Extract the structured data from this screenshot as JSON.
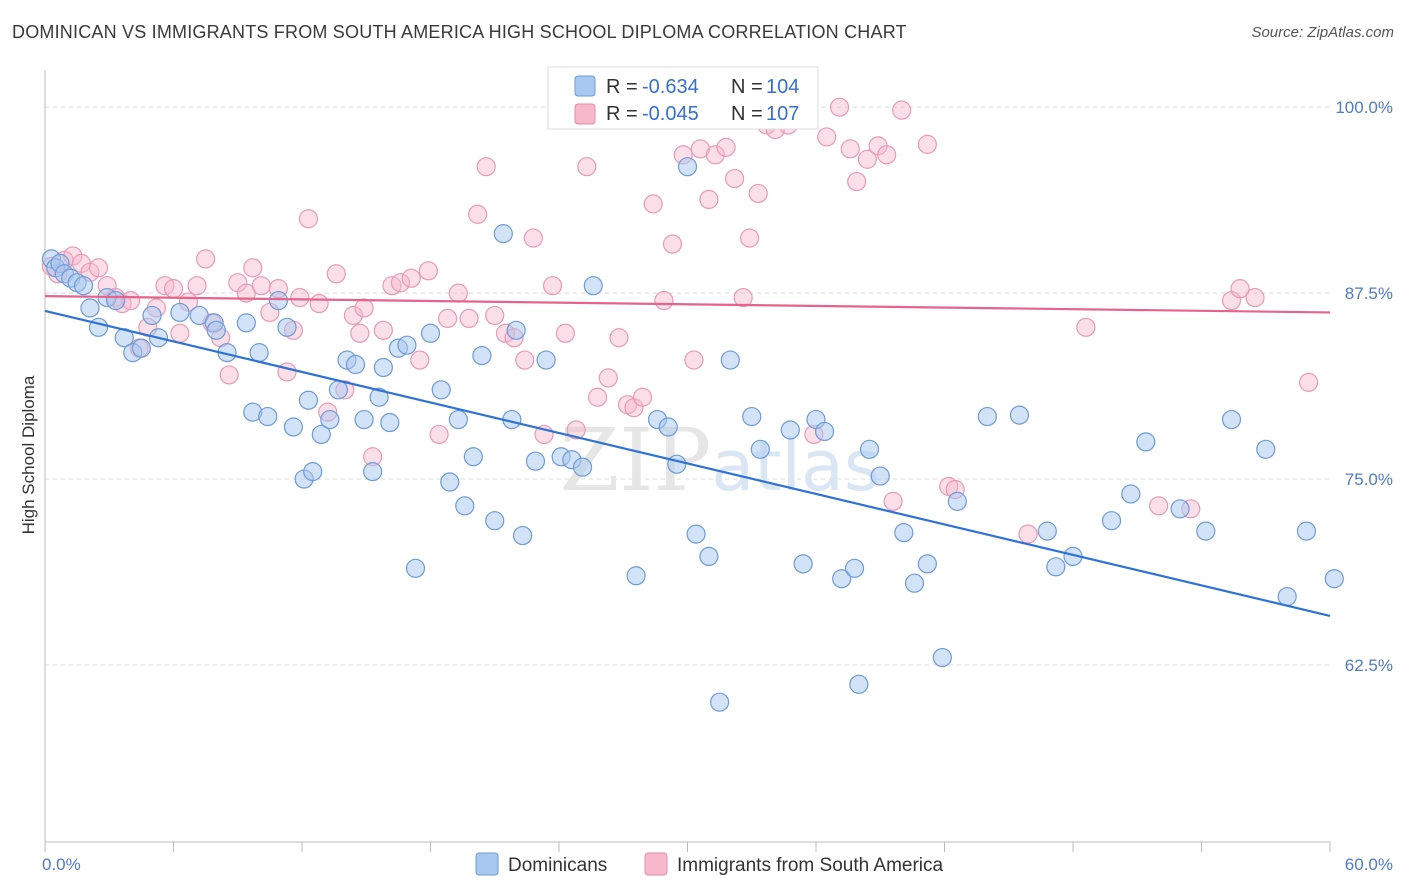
{
  "title": "DOMINICAN VS IMMIGRANTS FROM SOUTH AMERICA HIGH SCHOOL DIPLOMA CORRELATION CHART",
  "source": "Source: ZipAtlas.com",
  "watermark": "ZIPatlas",
  "colors": {
    "blue_fill": "#a8c8f0",
    "blue_line": "#2f72d6",
    "pink_fill": "#f7b8cb",
    "pink_line": "#e5638c",
    "tick_text": "#4f7cc7",
    "grid": "#d8d8d8"
  },
  "legend_top": {
    "r_label": "R =",
    "n_label": "N =",
    "rows": [
      {
        "r": "-0.634",
        "n": "104"
      },
      {
        "r": "-0.045",
        "n": "107"
      }
    ]
  },
  "chart_data": {
    "type": "scatter",
    "title": "DOMINICAN VS IMMIGRANTS FROM SOUTH AMERICA HIGH SCHOOL DIPLOMA CORRELATION CHART",
    "xlabel": "",
    "ylabel": "High School Diploma",
    "xlim": [
      0,
      60
    ],
    "ylim": [
      50.6,
      102.5
    ],
    "x_tick_labels": [
      "0.0%",
      "60.0%"
    ],
    "y_ticks": [
      62.5,
      75.0,
      87.5,
      100.0
    ],
    "y_tick_labels": [
      "62.5%",
      "75.0%",
      "87.5%",
      "100.0%"
    ],
    "grid": true,
    "legend_placement": "top-center and bottom",
    "series": [
      {
        "name": "Dominicans",
        "r": -0.634,
        "n": 104,
        "trend": {
          "x": [
            0,
            60
          ],
          "y": [
            86.3,
            65.8
          ]
        },
        "points": [
          [
            0.3,
            89.8
          ],
          [
            0.5,
            89.2
          ],
          [
            0.7,
            89.5
          ],
          [
            0.9,
            88.8
          ],
          [
            1.2,
            88.5
          ],
          [
            1.5,
            88.2
          ],
          [
            1.8,
            88.0
          ],
          [
            2.1,
            86.5
          ],
          [
            2.5,
            85.2
          ],
          [
            2.9,
            87.2
          ],
          [
            3.3,
            87.0
          ],
          [
            3.7,
            84.5
          ],
          [
            4.1,
            83.5
          ],
          [
            4.5,
            83.8
          ],
          [
            5.0,
            86.0
          ],
          [
            5.3,
            84.5
          ],
          [
            6.3,
            86.2
          ],
          [
            7.2,
            86.0
          ],
          [
            7.9,
            85.5
          ],
          [
            8.5,
            83.5
          ],
          [
            9.4,
            85.5
          ],
          [
            9.7,
            79.5
          ],
          [
            10.0,
            83.5
          ],
          [
            10.4,
            79.2
          ],
          [
            10.9,
            87.0
          ],
          [
            11.3,
            85.2
          ],
          [
            11.6,
            78.5
          ],
          [
            12.1,
            75.0
          ],
          [
            12.5,
            75.5
          ],
          [
            12.9,
            78.0
          ],
          [
            13.3,
            79.0
          ],
          [
            13.7,
            81.0
          ],
          [
            14.1,
            83.0
          ],
          [
            14.5,
            82.7
          ],
          [
            14.9,
            79.0
          ],
          [
            15.3,
            75.5
          ],
          [
            15.6,
            80.5
          ],
          [
            16.1,
            78.8
          ],
          [
            16.5,
            83.8
          ],
          [
            16.9,
            84.0
          ],
          [
            17.3,
            69.0
          ],
          [
            18.0,
            84.8
          ],
          [
            18.5,
            81.0
          ],
          [
            18.9,
            74.8
          ],
          [
            19.3,
            79.0
          ],
          [
            19.6,
            73.2
          ],
          [
            20.0,
            76.5
          ],
          [
            20.4,
            83.3
          ],
          [
            21.0,
            72.2
          ],
          [
            21.4,
            91.5
          ],
          [
            21.8,
            79.0
          ],
          [
            22.3,
            71.2
          ],
          [
            22.9,
            76.2
          ],
          [
            23.4,
            83.0
          ],
          [
            24.1,
            76.5
          ],
          [
            24.6,
            76.3
          ],
          [
            25.1,
            75.8
          ],
          [
            25.6,
            88.0
          ],
          [
            25.9,
            100.0
          ],
          [
            27.2,
            100.0
          ],
          [
            27.6,
            68.5
          ],
          [
            28.6,
            79.0
          ],
          [
            29.1,
            78.5
          ],
          [
            29.5,
            76.0
          ],
          [
            30.0,
            96.0
          ],
          [
            30.4,
            71.3
          ],
          [
            31.0,
            69.8
          ],
          [
            32.0,
            83.0
          ],
          [
            33.0,
            79.2
          ],
          [
            33.4,
            77.0
          ],
          [
            34.8,
            78.3
          ],
          [
            35.4,
            69.3
          ],
          [
            36.0,
            79.0
          ],
          [
            36.4,
            78.2
          ],
          [
            37.2,
            68.3
          ],
          [
            38.0,
            61.2
          ],
          [
            38.5,
            77.0
          ],
          [
            39.0,
            75.2
          ],
          [
            40.1,
            71.4
          ],
          [
            40.6,
            68.0
          ],
          [
            41.2,
            69.3
          ],
          [
            41.9,
            63.0
          ],
          [
            42.6,
            73.5
          ],
          [
            44.0,
            79.2
          ],
          [
            45.5,
            79.3
          ],
          [
            46.8,
            71.5
          ],
          [
            47.2,
            69.1
          ],
          [
            48.0,
            69.8
          ],
          [
            49.8,
            72.2
          ],
          [
            50.7,
            74.0
          ],
          [
            51.4,
            77.5
          ],
          [
            53.0,
            73.0
          ],
          [
            54.2,
            71.5
          ],
          [
            55.4,
            79.0
          ],
          [
            57.0,
            77.0
          ],
          [
            58.0,
            67.1
          ],
          [
            58.9,
            71.5
          ],
          [
            60.2,
            68.3
          ],
          [
            37.8,
            69.0
          ],
          [
            31.5,
            60.0
          ],
          [
            15.8,
            82.5
          ],
          [
            22.0,
            85.0
          ],
          [
            8.0,
            85.0
          ],
          [
            12.3,
            80.3
          ]
        ]
      },
      {
        "name": "Immigrants from South America",
        "r": -0.045,
        "n": 107,
        "trend": {
          "x": [
            0,
            60
          ],
          "y": [
            87.3,
            86.2
          ]
        },
        "points": [
          [
            0.3,
            89.3
          ],
          [
            0.6,
            88.8
          ],
          [
            0.9,
            89.7
          ],
          [
            1.3,
            90.0
          ],
          [
            1.7,
            89.5
          ],
          [
            2.1,
            88.9
          ],
          [
            2.5,
            89.2
          ],
          [
            2.9,
            88.0
          ],
          [
            3.3,
            87.2
          ],
          [
            3.6,
            86.8
          ],
          [
            4.0,
            87.0
          ],
          [
            4.4,
            83.8
          ],
          [
            4.8,
            85.2
          ],
          [
            5.2,
            86.5
          ],
          [
            5.6,
            88.0
          ],
          [
            6.0,
            87.8
          ],
          [
            6.3,
            84.8
          ],
          [
            6.7,
            86.9
          ],
          [
            7.1,
            88.0
          ],
          [
            7.5,
            89.8
          ],
          [
            7.8,
            85.5
          ],
          [
            8.2,
            84.5
          ],
          [
            8.6,
            82.0
          ],
          [
            9.0,
            88.2
          ],
          [
            9.4,
            87.5
          ],
          [
            9.7,
            89.2
          ],
          [
            10.1,
            88.0
          ],
          [
            10.5,
            86.2
          ],
          [
            10.9,
            87.8
          ],
          [
            11.3,
            82.2
          ],
          [
            11.6,
            85.0
          ],
          [
            11.9,
            87.2
          ],
          [
            12.3,
            92.5
          ],
          [
            12.8,
            86.8
          ],
          [
            13.2,
            79.5
          ],
          [
            13.6,
            88.8
          ],
          [
            14.0,
            81.0
          ],
          [
            14.4,
            86.0
          ],
          [
            14.7,
            84.8
          ],
          [
            14.9,
            86.5
          ],
          [
            15.3,
            76.5
          ],
          [
            15.8,
            85.0
          ],
          [
            16.2,
            88.0
          ],
          [
            16.6,
            88.2
          ],
          [
            17.1,
            88.5
          ],
          [
            17.5,
            83.0
          ],
          [
            17.9,
            89.0
          ],
          [
            18.4,
            78.0
          ],
          [
            18.8,
            85.8
          ],
          [
            19.3,
            87.5
          ],
          [
            19.8,
            85.8
          ],
          [
            20.2,
            92.8
          ],
          [
            20.6,
            96.0
          ],
          [
            21.0,
            86.0
          ],
          [
            21.5,
            84.8
          ],
          [
            21.9,
            84.5
          ],
          [
            22.4,
            83.0
          ],
          [
            22.8,
            91.2
          ],
          [
            23.3,
            78.0
          ],
          [
            23.7,
            88.0
          ],
          [
            24.3,
            84.8
          ],
          [
            24.8,
            78.3
          ],
          [
            25.3,
            96.0
          ],
          [
            25.8,
            80.5
          ],
          [
            26.3,
            81.8
          ],
          [
            26.8,
            84.5
          ],
          [
            27.2,
            80.0
          ],
          [
            27.5,
            79.8
          ],
          [
            27.9,
            80.5
          ],
          [
            28.4,
            93.5
          ],
          [
            28.9,
            87.0
          ],
          [
            29.3,
            90.8
          ],
          [
            29.8,
            96.8
          ],
          [
            30.3,
            83.0
          ],
          [
            30.6,
            97.2
          ],
          [
            31.0,
            93.8
          ],
          [
            31.3,
            96.8
          ],
          [
            31.8,
            97.3
          ],
          [
            32.2,
            95.2
          ],
          [
            32.6,
            87.2
          ],
          [
            32.9,
            91.2
          ],
          [
            33.3,
            94.2
          ],
          [
            33.7,
            98.8
          ],
          [
            34.1,
            98.5
          ],
          [
            34.7,
            98.8
          ],
          [
            35.4,
            100.0
          ],
          [
            35.9,
            78.0
          ],
          [
            36.5,
            98.0
          ],
          [
            37.1,
            100.0
          ],
          [
            37.6,
            97.2
          ],
          [
            37.9,
            95.0
          ],
          [
            38.4,
            96.5
          ],
          [
            38.9,
            97.4
          ],
          [
            39.3,
            96.8
          ],
          [
            39.6,
            73.5
          ],
          [
            40.0,
            99.8
          ],
          [
            41.2,
            97.5
          ],
          [
            42.2,
            74.5
          ],
          [
            42.5,
            74.3
          ],
          [
            45.9,
            71.3
          ],
          [
            48.6,
            85.2
          ],
          [
            52.0,
            73.2
          ],
          [
            53.5,
            73.0
          ],
          [
            55.4,
            87.0
          ],
          [
            55.8,
            87.8
          ],
          [
            56.5,
            87.2
          ],
          [
            59.0,
            81.5
          ]
        ]
      }
    ]
  },
  "bottom_legend": {
    "items": [
      {
        "label": "Dominicans"
      },
      {
        "label": "Immigrants from South America"
      }
    ]
  }
}
